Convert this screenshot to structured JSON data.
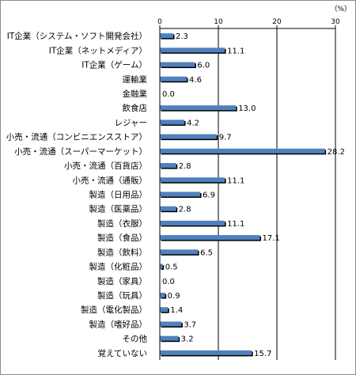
{
  "chart_data": {
    "type": "bar",
    "orientation": "horizontal",
    "unit_label": "（%）",
    "xlim": [
      0,
      30
    ],
    "xticks": [
      0,
      10,
      20,
      30
    ],
    "grid": true,
    "bar_color": "#4f81bd",
    "shadow_color": "#000000",
    "categories": [
      "IT企業（システム・ソフト開発会社）",
      "IT企業（ネットメディア）",
      "IT企業（ゲーム）",
      "運輸業",
      "金融業",
      "飲食店",
      "レジャー",
      "小売・流通（コンビニエンスストア）",
      "小売・流通（スーパーマーケット）",
      "小売・流通（百貨店）",
      "小売・流通（通販）",
      "製造（日用品）",
      "製造（医薬品）",
      "製造（衣服）",
      "製造（食品）",
      "製造（飲料）",
      "製造（化粧品）",
      "製造（家具）",
      "製造（玩具）",
      "製造（電化製品）",
      "製造（嗜好品）",
      "その他",
      "覚えていない"
    ],
    "values": [
      2.3,
      11.1,
      6.0,
      4.6,
      0.0,
      13.0,
      4.2,
      9.7,
      28.2,
      2.8,
      11.1,
      6.9,
      2.8,
      11.1,
      17.1,
      6.5,
      0.5,
      0.0,
      0.9,
      1.4,
      3.7,
      3.2,
      15.7
    ],
    "value_labels": [
      "2.3",
      "11.1",
      "6.0",
      "4.6",
      "0.0",
      "13.0",
      "4.2",
      "9.7",
      "28.2",
      "2.8",
      "11.1",
      "6.9",
      "2.8",
      "11.1",
      "17.1",
      "6.5",
      "0.5",
      "0.0",
      "0.9",
      "1.4",
      "3.7",
      "3.2",
      "15.7"
    ]
  }
}
